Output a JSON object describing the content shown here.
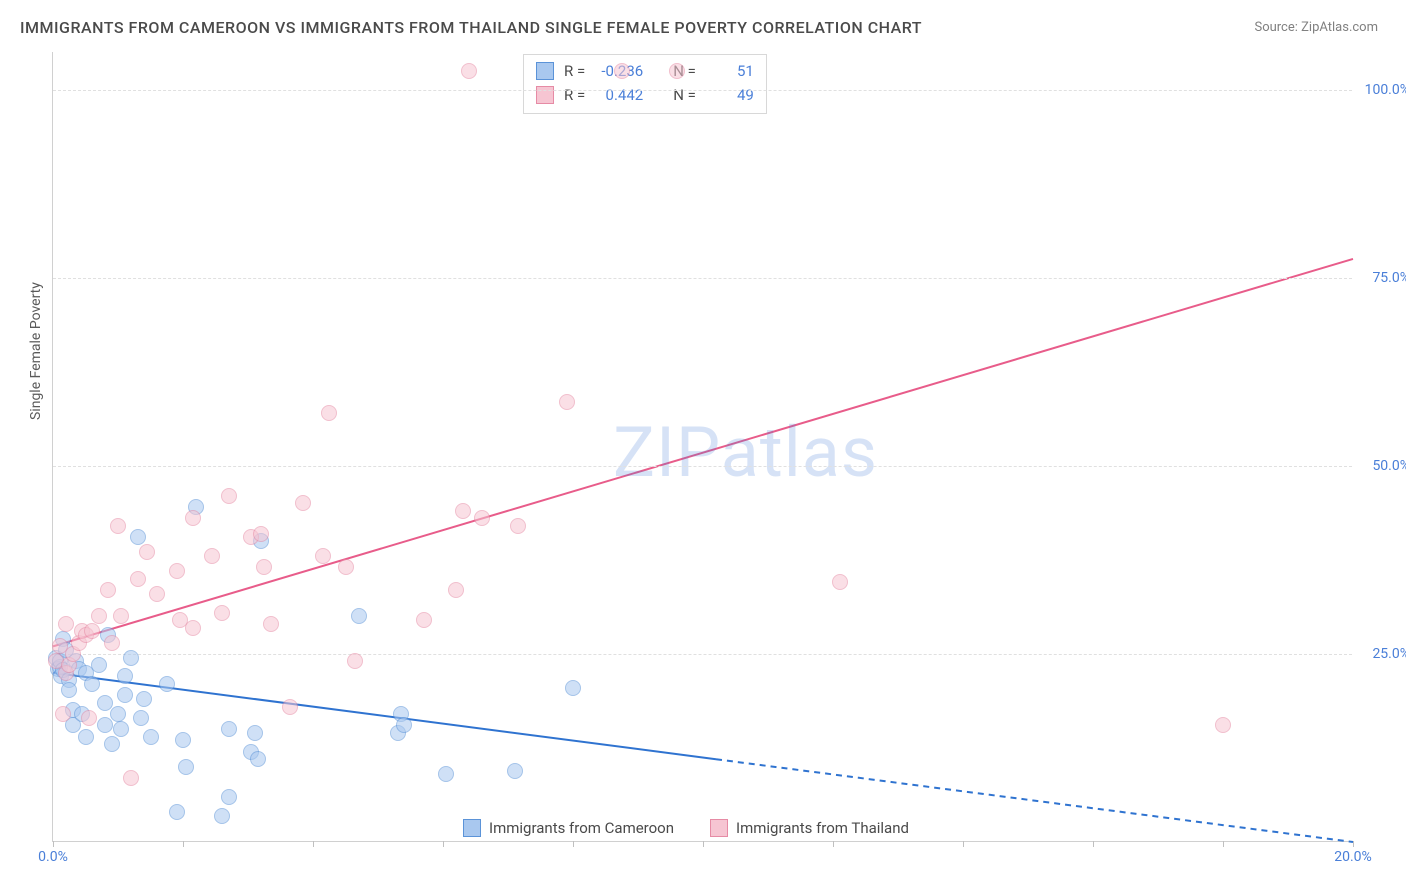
{
  "title": "IMMIGRANTS FROM CAMEROON VS IMMIGRANTS FROM THAILAND SINGLE FEMALE POVERTY CORRELATION CHART",
  "source_label": "Source: ZipAtlas.com",
  "watermark": "ZIPatlas",
  "y_axis_label": "Single Female Poverty",
  "chart": {
    "type": "scatter",
    "background_color": "#ffffff",
    "grid_color": "#e0e0e0",
    "axis_color": "#d0d0d0",
    "tick_label_color": "#4a7fd8",
    "xlim": [
      0,
      20
    ],
    "ylim": [
      0,
      105
    ],
    "y_ticks": [
      25.0,
      50.0,
      75.0,
      100.0
    ],
    "y_tick_labels": [
      "25.0%",
      "50.0%",
      "75.0%",
      "100.0%"
    ],
    "x_ticks": [
      0,
      2,
      4,
      6,
      8,
      10,
      12,
      14,
      16,
      18,
      20
    ],
    "x_tick_labels": [
      "0.0%",
      "",
      "",
      "",
      "",
      "",
      "",
      "",
      "",
      "",
      "20.0%"
    ],
    "marker_radius": 8,
    "marker_opacity": 0.55,
    "marker_border_width": 1,
    "series": [
      {
        "name": "Immigrants from Cameroon",
        "color_fill": "#a9c8ef",
        "color_border": "#5b93d8",
        "trend_color": "#2f73d0",
        "r": "-0.236",
        "n": "51",
        "trend": {
          "x1": 0.0,
          "y1": 22.5,
          "x2": 10.2,
          "y2": 11.0,
          "x2_dash": 20.0,
          "y2_dash": 0.0
        },
        "points": [
          [
            0.05,
            24.5
          ],
          [
            0.08,
            23.0
          ],
          [
            0.1,
            23.2
          ],
          [
            0.1,
            24.0
          ],
          [
            0.12,
            22.0
          ],
          [
            0.15,
            27.0
          ],
          [
            0.15,
            22.8
          ],
          [
            0.2,
            25.5
          ],
          [
            0.25,
            21.5
          ],
          [
            0.25,
            20.2
          ],
          [
            0.3,
            15.5
          ],
          [
            0.3,
            17.5
          ],
          [
            0.35,
            24.0
          ],
          [
            0.4,
            23.0
          ],
          [
            0.45,
            17.0
          ],
          [
            0.5,
            22.5
          ],
          [
            0.5,
            14.0
          ],
          [
            0.6,
            21.0
          ],
          [
            0.7,
            23.5
          ],
          [
            0.8,
            15.5
          ],
          [
            0.8,
            18.5
          ],
          [
            0.85,
            27.5
          ],
          [
            0.9,
            13.0
          ],
          [
            1.0,
            17.0
          ],
          [
            1.05,
            15.0
          ],
          [
            1.1,
            19.5
          ],
          [
            1.1,
            22.0
          ],
          [
            1.2,
            24.5
          ],
          [
            1.3,
            40.5
          ],
          [
            1.35,
            16.5
          ],
          [
            1.4,
            19.0
          ],
          [
            1.5,
            14.0
          ],
          [
            1.75,
            21.0
          ],
          [
            1.9,
            4.0
          ],
          [
            2.0,
            13.5
          ],
          [
            2.05,
            10.0
          ],
          [
            2.2,
            44.5
          ],
          [
            2.6,
            3.5
          ],
          [
            2.7,
            15.0
          ],
          [
            2.7,
            6.0
          ],
          [
            3.05,
            12.0
          ],
          [
            3.1,
            14.5
          ],
          [
            3.15,
            11.0
          ],
          [
            3.2,
            40.0
          ],
          [
            4.7,
            30.0
          ],
          [
            5.3,
            14.5
          ],
          [
            5.35,
            17.0
          ],
          [
            5.4,
            15.5
          ],
          [
            6.05,
            9.0
          ],
          [
            7.1,
            9.5
          ],
          [
            8.0,
            20.5
          ]
        ]
      },
      {
        "name": "Immigrants from Thailand",
        "color_fill": "#f6c5d2",
        "color_border": "#e68ba5",
        "trend_color": "#e85c8a",
        "r": "0.442",
        "n": "49",
        "trend": {
          "x1": 0.0,
          "y1": 26.0,
          "x2": 20.0,
          "y2": 77.5
        },
        "points": [
          [
            0.05,
            24.0
          ],
          [
            0.1,
            26.0
          ],
          [
            0.15,
            17.0
          ],
          [
            0.2,
            29.0
          ],
          [
            0.2,
            22.5
          ],
          [
            0.25,
            23.5
          ],
          [
            0.3,
            25.0
          ],
          [
            0.4,
            26.5
          ],
          [
            0.45,
            28.0
          ],
          [
            0.5,
            27.5
          ],
          [
            0.55,
            16.5
          ],
          [
            0.6,
            28.0
          ],
          [
            0.7,
            30.0
          ],
          [
            0.85,
            33.5
          ],
          [
            0.9,
            26.5
          ],
          [
            1.0,
            42.0
          ],
          [
            1.05,
            30.0
          ],
          [
            1.2,
            8.5
          ],
          [
            1.3,
            35.0
          ],
          [
            1.45,
            38.5
          ],
          [
            1.6,
            33.0
          ],
          [
            1.9,
            36.0
          ],
          [
            1.95,
            29.5
          ],
          [
            2.15,
            28.5
          ],
          [
            2.15,
            43.0
          ],
          [
            2.45,
            38.0
          ],
          [
            2.6,
            30.5
          ],
          [
            2.7,
            46.0
          ],
          [
            3.05,
            40.5
          ],
          [
            3.2,
            41.0
          ],
          [
            3.25,
            36.5
          ],
          [
            3.35,
            29.0
          ],
          [
            3.65,
            18.0
          ],
          [
            3.85,
            45.0
          ],
          [
            4.15,
            38.0
          ],
          [
            4.25,
            57.0
          ],
          [
            4.5,
            36.5
          ],
          [
            4.65,
            24.0
          ],
          [
            5.7,
            29.5
          ],
          [
            6.2,
            33.5
          ],
          [
            6.3,
            44.0
          ],
          [
            6.4,
            102.5
          ],
          [
            6.6,
            43.0
          ],
          [
            7.15,
            42.0
          ],
          [
            7.9,
            58.5
          ],
          [
            8.75,
            102.5
          ],
          [
            9.6,
            102.5
          ],
          [
            12.1,
            34.5
          ],
          [
            18.0,
            15.5
          ]
        ]
      }
    ]
  },
  "legend": {
    "series1_label": "Immigrants from Cameroon",
    "series2_label": "Immigrants from Thailand"
  },
  "stats_box": {
    "r_label": "R =",
    "n_label": "N ="
  }
}
